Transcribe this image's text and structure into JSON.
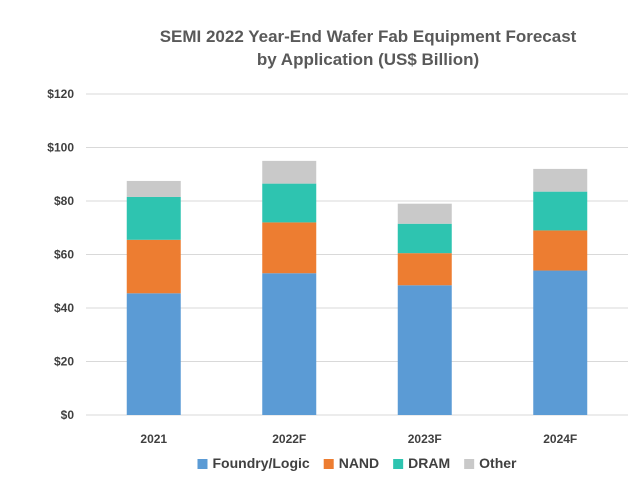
{
  "chart_data": {
    "type": "bar",
    "stacked": true,
    "title": "SEMI 2022 Year-End Wafer Fab Equipment Forecast",
    "subtitle": "by Application (US$ Billion)",
    "categories": [
      "2021",
      "2022F",
      "2023F",
      "2024F"
    ],
    "series": [
      {
        "name": "Foundry/Logic",
        "values": [
          45.5,
          53.0,
          48.5,
          54.0
        ],
        "color": "#5b9bd5"
      },
      {
        "name": "NAND",
        "values": [
          20.0,
          19.0,
          12.0,
          15.0
        ],
        "color": "#ed7d31"
      },
      {
        "name": "DRAM",
        "values": [
          16.0,
          14.5,
          11.0,
          14.5
        ],
        "color": "#2ec4b0"
      },
      {
        "name": "Other",
        "values": [
          6.0,
          8.5,
          7.5,
          8.5
        ],
        "color": "#c9c9c9"
      }
    ],
    "ylim": [
      0,
      120
    ],
    "yticks": [
      0,
      20,
      40,
      60,
      80,
      100,
      120
    ],
    "ytick_labels": [
      "$0",
      "$20",
      "$40",
      "$60",
      "$80",
      "$100",
      "$120"
    ],
    "xlabel": "",
    "ylabel": "",
    "grid": true,
    "legend_position": "bottom"
  }
}
